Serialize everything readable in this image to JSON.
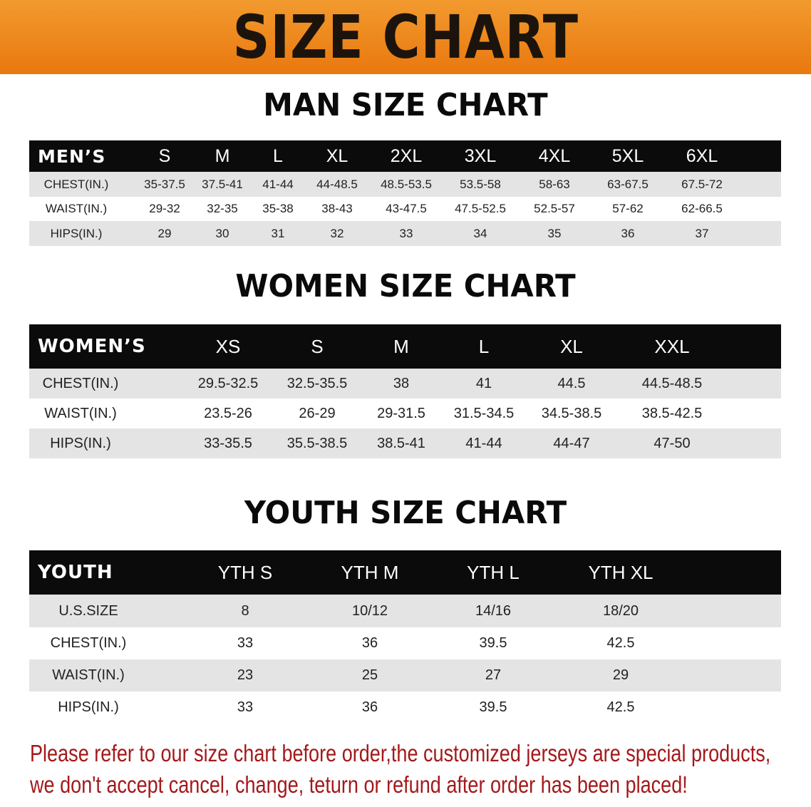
{
  "banner_title": "SIZE CHART",
  "men": {
    "title": "MAN SIZE CHART",
    "header": [
      "MEN’S",
      "S",
      "M",
      "L",
      "XL",
      "2XL",
      "3XL",
      "4XL",
      "5XL",
      "6XL"
    ],
    "rows": [
      [
        "CHEST(IN.)",
        "35-37.5",
        "37.5-41",
        "41-44",
        "44-48.5",
        "48.5-53.5",
        "53.5-58",
        "58-63",
        "63-67.5",
        "67.5-72"
      ],
      [
        "WAIST(IN.)",
        "29-32",
        "32-35",
        "35-38",
        "38-43",
        "43-47.5",
        "47.5-52.5",
        "52.5-57",
        "57-62",
        "62-66.5"
      ],
      [
        "HIPS(IN.)",
        "29",
        "30",
        "31",
        "32",
        "33",
        "34",
        "35",
        "36",
        "37"
      ]
    ]
  },
  "women": {
    "title": "WOMEN SIZE CHART",
    "header": [
      "WOMEN’S",
      "XS",
      "S",
      "M",
      "L",
      "XL",
      "XXL"
    ],
    "rows": [
      [
        "CHEST(IN.)",
        "29.5-32.5",
        "32.5-35.5",
        "38",
        "41",
        "44.5",
        "44.5-48.5"
      ],
      [
        "WAIST(IN.)",
        "23.5-26",
        "26-29",
        "29-31.5",
        "31.5-34.5",
        "34.5-38.5",
        "38.5-42.5"
      ],
      [
        "HIPS(IN.)",
        "33-35.5",
        "35.5-38.5",
        "38.5-41",
        "41-44",
        "44-47",
        "47-50"
      ]
    ]
  },
  "youth": {
    "title": "YOUTH SIZE CHART",
    "header": [
      "YOUTH",
      "YTH S",
      "YTH M",
      "YTH L",
      "YTH XL"
    ],
    "rows": [
      [
        "U.S.SIZE",
        "8",
        "10/12",
        "14/16",
        "18/20"
      ],
      [
        "CHEST(IN.)",
        "33",
        "36",
        "39.5",
        "42.5"
      ],
      [
        "WAIST(IN.)",
        "23",
        "25",
        "27",
        "29"
      ],
      [
        "HIPS(IN.)",
        "33",
        "36",
        "39.5",
        "42.5"
      ]
    ]
  },
  "notice": [
    "Please refer to our size chart before order,the customized jerseys are special products,",
    "we don't accept cancel, change, teturn or refund after order has been placed!"
  ],
  "colors": {
    "banner": "#ee8420",
    "header_row": "#0b0b0b",
    "stripe": "#e4e4e4",
    "notice": "#a3191b"
  }
}
